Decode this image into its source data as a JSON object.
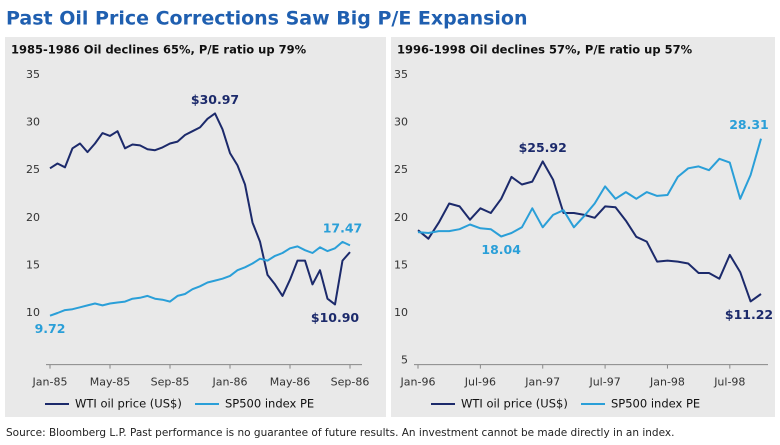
{
  "title": "Past Oil Price Corrections Saw Big P/E Expansion",
  "source": "Source: Bloomberg L.P. Past performance is no guarantee of future results. An investment cannot be made directly in an index.",
  "chart_data": [
    {
      "type": "line",
      "title": "1985-1986 Oil declines 65%, P/E ratio up 79%",
      "categories": [
        "Jan-85",
        null,
        null,
        null,
        null,
        null,
        null,
        null,
        "May-85",
        null,
        null,
        null,
        null,
        null,
        null,
        null,
        "Sep-85",
        null,
        null,
        null,
        null,
        null,
        null,
        null,
        "Jan-86",
        null,
        null,
        null,
        null,
        null,
        null,
        null,
        "May-86",
        null,
        null,
        null,
        null,
        null,
        null,
        null,
        "Sep-86"
      ],
      "ylim": [
        5,
        35
      ],
      "yticks": [
        10,
        15,
        20,
        25,
        30,
        35
      ],
      "series": [
        {
          "name": "WTI oil price (US$)",
          "color": "#1c2a6b",
          "values": [
            25.2,
            25.7,
            25.3,
            27.3,
            27.8,
            26.9,
            27.8,
            28.9,
            28.6,
            29.1,
            27.3,
            27.7,
            27.6,
            27.2,
            27.1,
            27.4,
            27.8,
            28.0,
            28.7,
            29.1,
            29.5,
            30.4,
            30.97,
            29.3,
            26.8,
            25.5,
            23.5,
            19.5,
            17.5,
            14.0,
            13.0,
            11.8,
            13.5,
            15.5,
            15.5,
            13.0,
            14.5,
            11.5,
            10.9,
            15.5,
            16.4
          ],
          "value_labels": [
            null,
            null,
            null,
            null,
            null,
            null,
            null,
            null,
            null,
            null,
            null,
            null,
            null,
            null,
            null,
            null,
            null,
            null,
            null,
            null,
            null,
            null,
            "$30.97",
            null,
            null,
            null,
            null,
            null,
            null,
            null,
            null,
            null,
            null,
            null,
            null,
            null,
            null,
            null,
            "$10.90",
            null,
            null
          ]
        },
        {
          "name": "SP500 index PE",
          "color": "#2a9fd8",
          "values": [
            9.72,
            10.0,
            10.3,
            10.4,
            10.6,
            10.8,
            11.0,
            10.8,
            11.0,
            11.1,
            11.2,
            11.5,
            11.6,
            11.8,
            11.5,
            11.4,
            11.2,
            11.8,
            12.0,
            12.5,
            12.8,
            13.2,
            13.4,
            13.6,
            13.9,
            14.5,
            14.8,
            15.2,
            15.7,
            15.5,
            16.0,
            16.3,
            16.8,
            17.0,
            16.6,
            16.3,
            16.9,
            16.5,
            16.8,
            17.47,
            17.1
          ],
          "value_labels": [
            "9.72",
            null,
            null,
            null,
            null,
            null,
            null,
            null,
            null,
            null,
            null,
            null,
            null,
            null,
            null,
            null,
            null,
            null,
            null,
            null,
            null,
            null,
            null,
            null,
            null,
            null,
            null,
            null,
            null,
            null,
            null,
            null,
            null,
            null,
            null,
            null,
            null,
            null,
            null,
            "17.47",
            null
          ]
        }
      ]
    },
    {
      "type": "line",
      "title": "1996-1998 Oil declines 57%, P/E ratio up 57%",
      "categories": [
        "Jan-96",
        null,
        null,
        null,
        null,
        null,
        "Jul-96",
        null,
        null,
        null,
        null,
        null,
        "Jan-97",
        null,
        null,
        null,
        null,
        null,
        "Jul-97",
        null,
        null,
        null,
        null,
        null,
        "Jan-98",
        null,
        null,
        null,
        null,
        null,
        "Jul-98",
        null,
        null,
        null
      ],
      "ylim": [
        5,
        35
      ],
      "yticks": [
        5,
        10,
        15,
        20,
        25,
        30,
        35
      ],
      "series": [
        {
          "name": "WTI oil price (US$)",
          "color": "#1c2a6b",
          "values": [
            18.7,
            17.8,
            19.5,
            21.5,
            21.2,
            19.8,
            21.0,
            20.5,
            22.0,
            24.3,
            23.5,
            23.8,
            25.92,
            24.0,
            20.5,
            20.5,
            20.3,
            20.0,
            21.2,
            21.1,
            19.7,
            18.0,
            17.5,
            15.4,
            15.5,
            15.4,
            15.2,
            14.2,
            14.2,
            13.6,
            16.1,
            14.3,
            11.22,
            12.0
          ],
          "value_labels": [
            null,
            null,
            null,
            null,
            null,
            null,
            null,
            null,
            null,
            null,
            null,
            null,
            "$25.92",
            null,
            null,
            null,
            null,
            null,
            null,
            null,
            null,
            null,
            null,
            null,
            null,
            null,
            null,
            null,
            null,
            null,
            null,
            null,
            "$11.22",
            null
          ]
        },
        {
          "name": "SP500 index PE",
          "color": "#2a9fd8",
          "values": [
            18.5,
            18.4,
            18.6,
            18.6,
            18.8,
            19.3,
            18.9,
            18.8,
            18.04,
            18.4,
            19.0,
            21.0,
            19.0,
            20.3,
            20.8,
            19.0,
            20.2,
            21.5,
            23.3,
            22.0,
            22.7,
            22.0,
            22.7,
            22.3,
            22.4,
            24.3,
            25.2,
            25.4,
            25.0,
            26.2,
            25.8,
            22.0,
            24.5,
            28.31
          ],
          "value_labels": [
            null,
            null,
            null,
            null,
            null,
            null,
            null,
            null,
            "18.04",
            null,
            null,
            null,
            null,
            null,
            null,
            null,
            null,
            null,
            null,
            null,
            null,
            null,
            null,
            null,
            null,
            null,
            null,
            null,
            null,
            null,
            null,
            null,
            null,
            "28.31"
          ]
        }
      ]
    }
  ]
}
